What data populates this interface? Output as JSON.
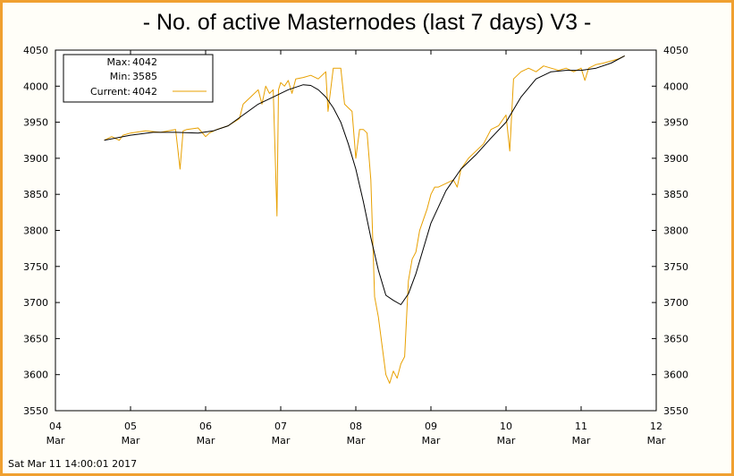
{
  "chart_data": {
    "type": "line",
    "title": "- No. of active Masternodes (last 7 days) V3 -",
    "footer": "Sat Mar 11 14:00:01 2017",
    "xlabel": "",
    "ylabel": "",
    "ylim": [
      3550,
      4050
    ],
    "xlim": [
      4,
      12
    ],
    "y_ticks": [
      "3550",
      "3600",
      "3650",
      "3700",
      "3750",
      "3800",
      "3850",
      "3900",
      "3950",
      "4000",
      "4050"
    ],
    "x_ticks": [
      {
        "day": "04",
        "month": "Mar"
      },
      {
        "day": "05",
        "month": "Mar"
      },
      {
        "day": "06",
        "month": "Mar"
      },
      {
        "day": "07",
        "month": "Mar"
      },
      {
        "day": "08",
        "month": "Mar"
      },
      {
        "day": "09",
        "month": "Mar"
      },
      {
        "day": "10",
        "month": "Mar"
      },
      {
        "day": "11",
        "month": "Mar"
      },
      {
        "day": "12",
        "month": "Mar"
      }
    ],
    "legend": {
      "position": "top-left",
      "max_label": "Max:",
      "max_value": "4042",
      "min_label": "Min:",
      "min_value": "3585",
      "current_label": "Current:",
      "current_value": "4042"
    },
    "series": [
      {
        "role": "raw",
        "color": "#e8a000",
        "x": [
          4.65,
          4.75,
          4.85,
          4.9,
          5.0,
          5.2,
          5.4,
          5.6,
          5.66,
          5.7,
          5.75,
          5.9,
          6.0,
          6.05,
          6.15,
          6.3,
          6.45,
          6.5,
          6.6,
          6.7,
          6.75,
          6.8,
          6.85,
          6.9,
          6.95,
          6.97,
          7.0,
          7.05,
          7.1,
          7.15,
          7.2,
          7.3,
          7.4,
          7.5,
          7.6,
          7.63,
          7.7,
          7.8,
          7.85,
          7.9,
          7.95,
          8.0,
          8.05,
          8.1,
          8.15,
          8.2,
          8.25,
          8.3,
          8.35,
          8.4,
          8.45,
          8.5,
          8.55,
          8.6,
          8.65,
          8.7,
          8.75,
          8.8,
          8.85,
          8.9,
          8.95,
          9.0,
          9.05,
          9.1,
          9.2,
          9.3,
          9.35,
          9.4,
          9.5,
          9.6,
          9.7,
          9.8,
          9.9,
          10.0,
          10.05,
          10.1,
          10.2,
          10.3,
          10.4,
          10.5,
          10.6,
          10.7,
          10.8,
          10.9,
          11.0,
          11.05,
          11.1,
          11.2,
          11.3,
          11.4,
          11.5,
          11.58
        ],
        "values": [
          3925,
          3930,
          3925,
          3932,
          3935,
          3938,
          3936,
          3940,
          3885,
          3938,
          3940,
          3942,
          3930,
          3935,
          3940,
          3945,
          3955,
          3975,
          3985,
          3995,
          3975,
          4000,
          3990,
          3995,
          3820,
          3995,
          4005,
          4000,
          4008,
          3990,
          4010,
          4012,
          4015,
          4010,
          4020,
          3965,
          4025,
          4025,
          3975,
          3970,
          3965,
          3900,
          3940,
          3940,
          3935,
          3870,
          3708,
          3680,
          3640,
          3600,
          3588,
          3605,
          3595,
          3615,
          3625,
          3730,
          3760,
          3770,
          3800,
          3815,
          3830,
          3850,
          3860,
          3860,
          3865,
          3870,
          3860,
          3885,
          3900,
          3910,
          3920,
          3940,
          3945,
          3960,
          3910,
          4010,
          4020,
          4025,
          4020,
          4028,
          4025,
          4022,
          4025,
          4020,
          4025,
          4008,
          4025,
          4030,
          4032,
          4035,
          4038,
          4042
        ]
      },
      {
        "role": "smoothed",
        "color": "#000000",
        "x": [
          4.65,
          5.0,
          5.3,
          5.6,
          5.9,
          6.1,
          6.3,
          6.5,
          6.7,
          6.9,
          7.1,
          7.3,
          7.4,
          7.5,
          7.6,
          7.7,
          7.8,
          7.9,
          8.0,
          8.1,
          8.2,
          8.3,
          8.4,
          8.5,
          8.6,
          8.7,
          8.8,
          8.9,
          9.0,
          9.2,
          9.4,
          9.6,
          9.8,
          10.0,
          10.2,
          10.4,
          10.6,
          10.8,
          11.0,
          11.2,
          11.4,
          11.58
        ],
        "values": [
          3925,
          3932,
          3936,
          3936,
          3935,
          3938,
          3945,
          3960,
          3975,
          3985,
          3995,
          4002,
          4001,
          3995,
          3985,
          3970,
          3950,
          3920,
          3885,
          3840,
          3790,
          3745,
          3710,
          3703,
          3697,
          3712,
          3740,
          3775,
          3810,
          3855,
          3885,
          3905,
          3928,
          3950,
          3985,
          4010,
          4020,
          4022,
          4022,
          4025,
          4032,
          4042
        ]
      }
    ]
  }
}
